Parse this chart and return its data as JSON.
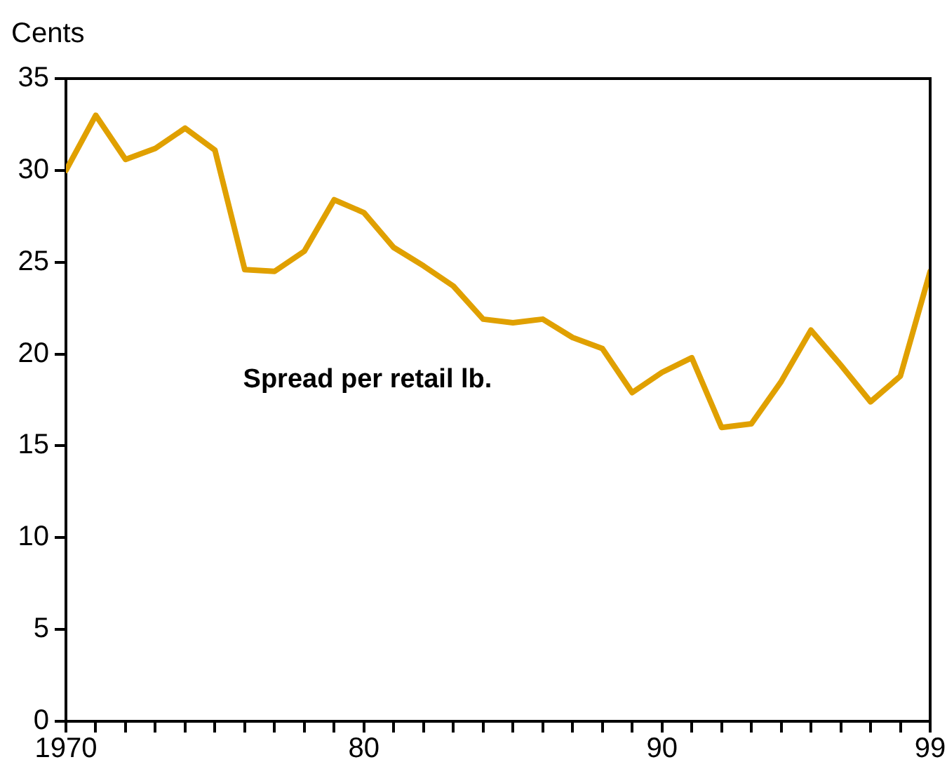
{
  "chart_data": {
    "type": "line",
    "ylabel": "Cents",
    "x": [
      1970,
      1971,
      1972,
      1973,
      1974,
      1975,
      1976,
      1977,
      1978,
      1979,
      1980,
      1981,
      1982,
      1983,
      1984,
      1985,
      1986,
      1987,
      1988,
      1989,
      1990,
      1991,
      1992,
      1993,
      1994,
      1995,
      1996,
      1997,
      1998,
      1999
    ],
    "series": [
      {
        "name": "Spread per retail lb.",
        "color": "#e0a000",
        "values": [
          30.0,
          33.0,
          30.6,
          31.2,
          32.3,
          31.1,
          24.6,
          24.5,
          25.6,
          28.4,
          27.7,
          25.8,
          24.8,
          23.7,
          21.9,
          21.7,
          21.9,
          20.9,
          20.3,
          17.9,
          19.0,
          19.8,
          16.0,
          16.2,
          18.5,
          21.3,
          19.4,
          17.4,
          18.8,
          24.5
        ]
      }
    ],
    "xlim": [
      1970,
      1999
    ],
    "xticks": [
      1970,
      {
        "value": 1971,
        "label": null
      },
      {
        "value": 1972,
        "label": null
      },
      {
        "value": 1973,
        "label": null
      },
      {
        "value": 1974,
        "label": null
      },
      {
        "value": 1975,
        "label": null
      },
      {
        "value": 1976,
        "label": null
      },
      {
        "value": 1977,
        "label": null
      },
      {
        "value": 1978,
        "label": null
      },
      {
        "value": 1979,
        "label": null
      },
      {
        "value": 1980,
        "label": "80"
      },
      {
        "value": 1981,
        "label": null
      },
      {
        "value": 1982,
        "label": null
      },
      {
        "value": 1983,
        "label": null
      },
      {
        "value": 1984,
        "label": null
      },
      {
        "value": 1985,
        "label": null
      },
      {
        "value": 1986,
        "label": null
      },
      {
        "value": 1987,
        "label": null
      },
      {
        "value": 1988,
        "label": null
      },
      {
        "value": 1989,
        "label": null
      },
      {
        "value": 1990,
        "label": "90"
      },
      {
        "value": 1991,
        "label": null
      },
      {
        "value": 1992,
        "label": null
      },
      {
        "value": 1993,
        "label": null
      },
      {
        "value": 1994,
        "label": null
      },
      {
        "value": 1995,
        "label": null
      },
      {
        "value": 1996,
        "label": null
      },
      {
        "value": 1997,
        "label": null
      },
      {
        "value": 1998,
        "label": null
      },
      {
        "value": 1999,
        "label": "99"
      }
    ],
    "ylim": [
      0,
      35
    ],
    "yticks": [
      0,
      5,
      10,
      15,
      20,
      25,
      30,
      35
    ],
    "grid": false,
    "legend": false,
    "marker": "none",
    "line_style": "solid"
  }
}
